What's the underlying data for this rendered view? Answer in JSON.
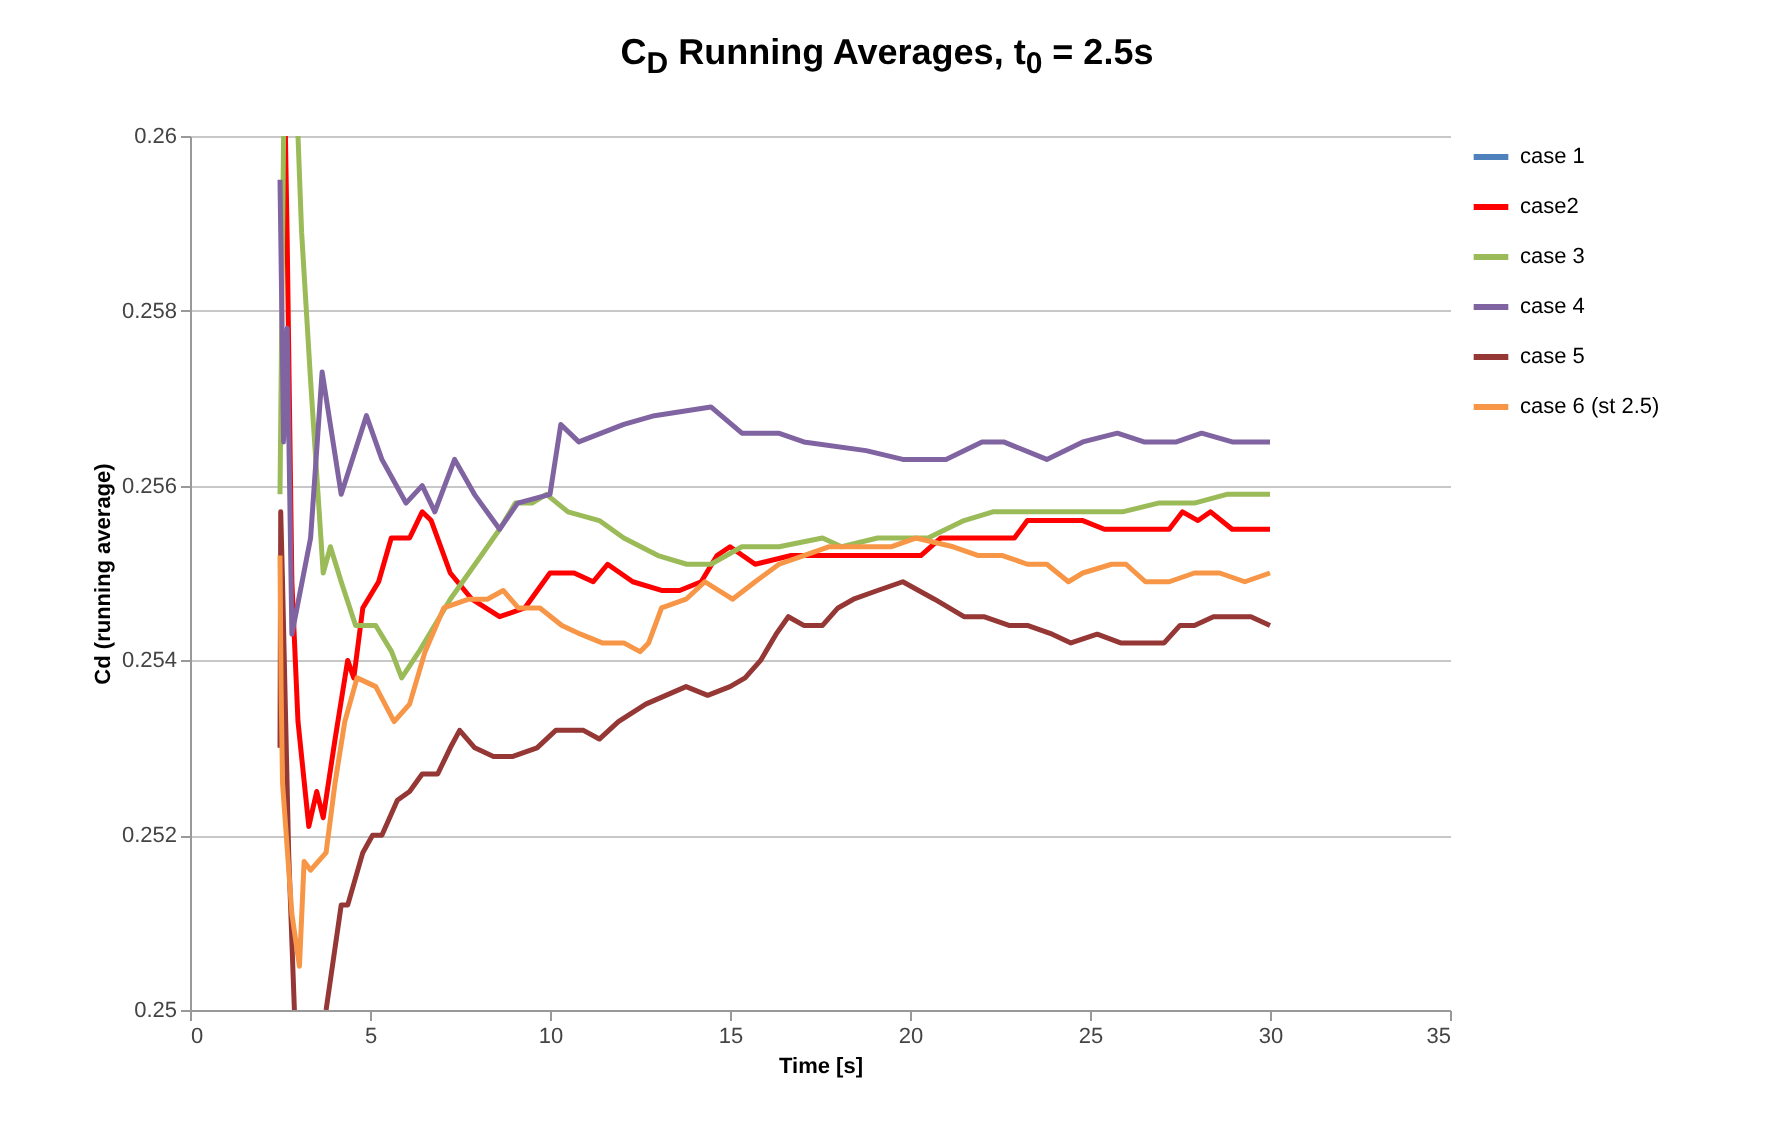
{
  "chart_data": {
    "type": "line",
    "title": "C$_{D}$ Running Averages, t$_{0}$ = 2.5s",
    "xlabel": "Time [s]",
    "ylabel": "Cd (running average)",
    "xlim": [
      0,
      35
    ],
    "xticks": [
      0,
      5,
      10,
      15,
      20,
      25,
      30,
      35
    ],
    "ylim": [
      0.25,
      0.26
    ],
    "yticks": [
      0.25,
      0.252,
      0.254,
      0.256,
      0.258,
      0.26
    ],
    "grid": "y",
    "legend": "right",
    "line_style": "solid",
    "series": [
      {
        "name": "case 1",
        "color": "#4f81bd"
      },
      {
        "name": "case2",
        "color": "#ff0000",
        "x": [
          2.65,
          2.7,
          2.83,
          3.0,
          3.3,
          3.52,
          3.7,
          4.03,
          4.38,
          4.55,
          4.8,
          5.24,
          5.59,
          6.1,
          6.45,
          6.7,
          7.23,
          7.83,
          8.6,
          9.3,
          10.0,
          10.67,
          11.2,
          11.6,
          12.3,
          13.1,
          13.6,
          14.2,
          14.64,
          15.0,
          15.7,
          16.7,
          17.57,
          18.43,
          19.47,
          20.3,
          20.85,
          21.36,
          22.05,
          22.9,
          23.26,
          24.3,
          24.8,
          25.4,
          25.85,
          26.54,
          27.2,
          27.57,
          28.0,
          28.35,
          28.95,
          29.47,
          30.0
        ],
        "values": [
          0.26,
          0.2588,
          0.2549,
          0.2533,
          0.2521,
          0.2525,
          0.2522,
          0.2531,
          0.254,
          0.2538,
          0.2546,
          0.2549,
          0.2554,
          0.2554,
          0.2557,
          0.2556,
          0.255,
          0.2547,
          0.2545,
          0.2546,
          0.255,
          0.255,
          0.2549,
          0.2551,
          0.2549,
          0.2548,
          0.2548,
          0.2549,
          0.2552,
          0.2553,
          0.2551,
          0.2552,
          0.2552,
          0.2552,
          0.2552,
          0.2552,
          0.2554,
          0.2554,
          0.2554,
          0.2554,
          0.2556,
          0.2556,
          0.2556,
          0.2555,
          0.2555,
          0.2555,
          0.2555,
          0.2557,
          0.2556,
          0.2557,
          0.2555,
          0.2555,
          0.2555
        ]
      },
      {
        "name": "case 3",
        "color": "#9bbb59",
        "x": [
          2.5,
          2.6,
          2.8,
          3.0,
          3.1,
          3.35,
          3.7,
          3.9,
          4.2,
          4.6,
          5.16,
          5.6,
          5.88,
          6.36,
          7.23,
          8.09,
          8.6,
          9.04,
          9.5,
          9.9,
          10.5,
          11.37,
          12.05,
          13.0,
          13.8,
          14.47,
          15.33,
          16.36,
          17.57,
          18.1,
          19.1,
          19.8,
          20.5,
          21.5,
          22.3,
          23.0,
          23.95,
          24.8,
          25.9,
          26.9,
          27.9,
          28.8,
          30.0
        ],
        "values": [
          0.2559,
          0.26,
          null,
          0.26,
          0.2589,
          0.2572,
          0.255,
          0.2553,
          0.2549,
          0.2544,
          0.2544,
          0.2541,
          0.2538,
          0.2541,
          0.2547,
          0.2552,
          0.2555,
          0.2558,
          0.2558,
          0.2559,
          0.2557,
          0.2556,
          0.2554,
          0.2552,
          0.2551,
          0.2551,
          0.2553,
          0.2553,
          0.2554,
          0.2553,
          0.2554,
          0.2554,
          0.2554,
          0.2556,
          0.2557,
          0.2557,
          0.2557,
          0.2557,
          0.2557,
          0.2558,
          0.2558,
          0.2559,
          0.2559
        ]
      },
      {
        "name": "case 4",
        "color": "#8064a2",
        "x": [
          2.5,
          2.6,
          2.7,
          2.83,
          3.35,
          3.67,
          4.2,
          4.9,
          5.33,
          6.0,
          6.45,
          6.8,
          7.35,
          7.9,
          8.6,
          9.1,
          10.0,
          10.3,
          10.8,
          12.05,
          12.9,
          14.47,
          15.33,
          16.35,
          17.05,
          18.78,
          19.8,
          21.0,
          22.0,
          22.6,
          23.8,
          24.8,
          25.76,
          26.5,
          27.4,
          28.1,
          28.95,
          30.0
        ],
        "values": [
          0.2595,
          0.2565,
          0.2578,
          0.2543,
          0.2554,
          0.2573,
          0.2559,
          0.2568,
          0.2563,
          0.2558,
          0.256,
          0.2557,
          0.2563,
          0.2559,
          0.2555,
          0.2558,
          0.2559,
          0.2567,
          0.2565,
          0.2567,
          0.2568,
          0.2569,
          0.2566,
          0.2566,
          0.2565,
          0.2564,
          0.2563,
          0.2563,
          0.2565,
          0.2565,
          0.2563,
          0.2565,
          0.2566,
          0.2565,
          0.2565,
          0.2566,
          0.2565,
          0.2565
        ]
      },
      {
        "name": "case 5",
        "color": "#953735",
        "x": [
          2.5,
          2.52,
          2.57,
          2.74,
          2.9,
          3.3,
          3.78,
          4.2,
          4.38,
          4.8,
          5.07,
          5.33,
          5.76,
          6.1,
          6.45,
          6.88,
          7.23,
          7.49,
          7.91,
          8.43,
          8.95,
          9.64,
          10.16,
          10.93,
          11.37,
          11.9,
          12.66,
          13.78,
          14.38,
          15.0,
          15.42,
          15.85,
          16.28,
          16.62,
          17.05,
          17.57,
          18.0,
          18.43,
          19.1,
          19.8,
          20.68,
          21.5,
          22.05,
          22.75,
          23.26,
          23.95,
          24.47,
          25.2,
          25.85,
          26.54,
          27.06,
          27.5,
          27.9,
          28.43,
          28.95,
          29.47,
          30.0
        ],
        "values": [
          0.253,
          0.2557,
          0.2549,
          0.2518,
          0.25,
          null,
          0.25,
          0.2512,
          0.2512,
          0.2518,
          0.252,
          0.252,
          0.2524,
          0.2525,
          0.2527,
          0.2527,
          0.253,
          0.2532,
          0.253,
          0.2529,
          0.2529,
          0.253,
          0.2532,
          0.2532,
          0.2531,
          0.2533,
          0.2535,
          0.2537,
          0.2536,
          0.2537,
          0.2538,
          0.254,
          0.2543,
          0.2545,
          0.2544,
          0.2544,
          0.2546,
          0.2547,
          0.2548,
          0.2549,
          0.2547,
          0.2545,
          0.2545,
          0.2544,
          0.2544,
          0.2543,
          0.2542,
          0.2543,
          0.2542,
          0.2542,
          0.2542,
          0.2544,
          0.2544,
          0.2545,
          0.2545,
          0.2545,
          0.2544
        ]
      },
      {
        "name": "case 6 (st 2.5)",
        "color": "#f79646",
        "x": [
          2.5,
          2.53,
          2.57,
          2.83,
          3.04,
          3.17,
          3.35,
          3.78,
          4.03,
          4.3,
          4.64,
          5.16,
          5.67,
          6.1,
          6.53,
          7.05,
          7.74,
          8.26,
          8.7,
          9.12,
          9.72,
          10.33,
          10.85,
          11.45,
          12.05,
          12.5,
          12.74,
          13.1,
          13.78,
          14.3,
          15.07,
          15.7,
          16.36,
          17.05,
          17.74,
          18.6,
          19.47,
          20.16,
          21.2,
          21.9,
          22.57,
          23.26,
          23.8,
          24.4,
          24.8,
          25.6,
          26.0,
          26.54,
          27.2,
          27.9,
          28.6,
          29.3,
          30.0
        ],
        "values": [
          0.2552,
          0.2537,
          0.2526,
          0.2511,
          0.2505,
          0.2517,
          0.2516,
          0.2518,
          0.2526,
          0.2533,
          0.2538,
          0.2537,
          0.2533,
          0.2535,
          0.2541,
          0.2546,
          0.2547,
          0.2547,
          0.2548,
          0.2546,
          0.2546,
          0.2544,
          0.2543,
          0.2542,
          0.2542,
          0.2541,
          0.2542,
          0.2546,
          0.2547,
          0.2549,
          0.2547,
          0.2549,
          0.2551,
          0.2552,
          0.2553,
          0.2553,
          0.2553,
          0.2554,
          0.2553,
          0.2552,
          0.2552,
          0.2551,
          0.2551,
          0.2549,
          0.255,
          0.2551,
          0.2551,
          0.2549,
          0.2549,
          0.255,
          0.255,
          0.2549,
          0.255
        ]
      }
    ]
  }
}
